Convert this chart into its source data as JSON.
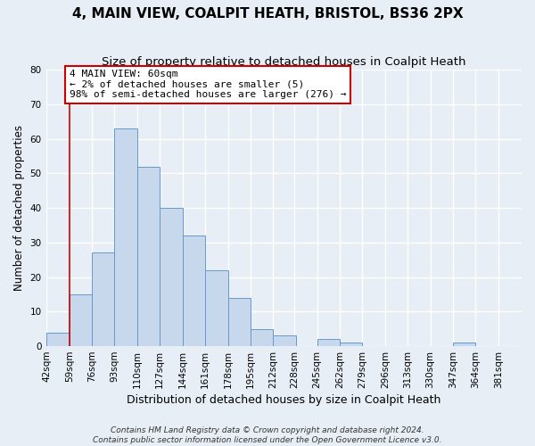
{
  "title": "4, MAIN VIEW, COALPIT HEATH, BRISTOL, BS36 2PX",
  "subtitle": "Size of property relative to detached houses in Coalpit Heath",
  "xlabel": "Distribution of detached houses by size in Coalpit Heath",
  "ylabel": "Number of detached properties",
  "footnote1": "Contains HM Land Registry data © Crown copyright and database right 2024.",
  "footnote2": "Contains public sector information licensed under the Open Government Licence v3.0.",
  "bin_edges": [
    42,
    59,
    76,
    93,
    110,
    127,
    144,
    161,
    178,
    195,
    212,
    228,
    245,
    262,
    279,
    296,
    313,
    330,
    347,
    364,
    381
  ],
  "bar_heights": [
    4,
    15,
    27,
    63,
    52,
    40,
    32,
    22,
    14,
    5,
    3,
    0,
    2,
    1,
    0,
    0,
    0,
    0,
    1,
    0
  ],
  "bar_color": "#c8d8ec",
  "bar_edge_color": "#6699cc",
  "red_line_x": 59,
  "ylim": [
    0,
    80
  ],
  "yticks": [
    0,
    10,
    20,
    30,
    40,
    50,
    60,
    70,
    80
  ],
  "annotation_text": "4 MAIN VIEW: 60sqm\n← 2% of detached houses are smaller (5)\n98% of semi-detached houses are larger (276) →",
  "annotation_box_color": "#ffffff",
  "annotation_box_edge_color": "#cc0000",
  "background_color": "#e8eef5",
  "grid_color": "#ffffff",
  "title_fontsize": 11,
  "subtitle_fontsize": 9.5,
  "xlabel_fontsize": 9,
  "ylabel_fontsize": 8.5,
  "annotation_fontsize": 8,
  "tick_fontsize": 7.5,
  "footnote_fontsize": 6.5
}
